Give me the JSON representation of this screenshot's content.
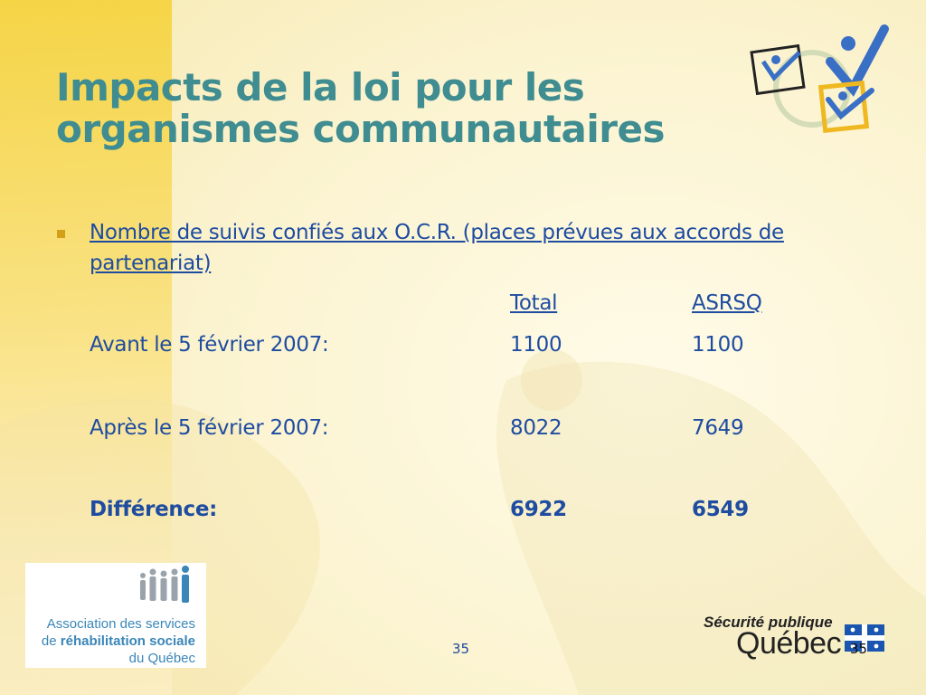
{
  "slide": {
    "title_line1": "Impacts de la loi pour les",
    "title_line2": "organismes communautaires",
    "bullet": "Nombre de suivis confiés aux O.C.R. (places prévues aux accords de partenariat)",
    "col_total": "Total",
    "col_asrsq": "ASRSQ",
    "rows": [
      {
        "label": "Avant le 5 février 2007:",
        "total": "1100",
        "asrsq": "1100"
      },
      {
        "label": "Après le 5 février 2007:",
        "total": "8022",
        "asrsq": "7649"
      },
      {
        "label": "Différence:",
        "total": "6922",
        "asrsq": "6549"
      }
    ],
    "page_number": "35",
    "page_number_right": "35"
  },
  "logo_left": {
    "line1": "Association des services",
    "line2_prefix": "de ",
    "line2_bold": "réhabilitation sociale",
    "line3": "du Québec"
  },
  "logo_right": {
    "small": "Sécurité publique",
    "big": "Québec"
  },
  "colors": {
    "title": "#3f8c91",
    "text": "#1e4ca0",
    "bullet": "#d4a017",
    "band": "#f5d23a"
  }
}
